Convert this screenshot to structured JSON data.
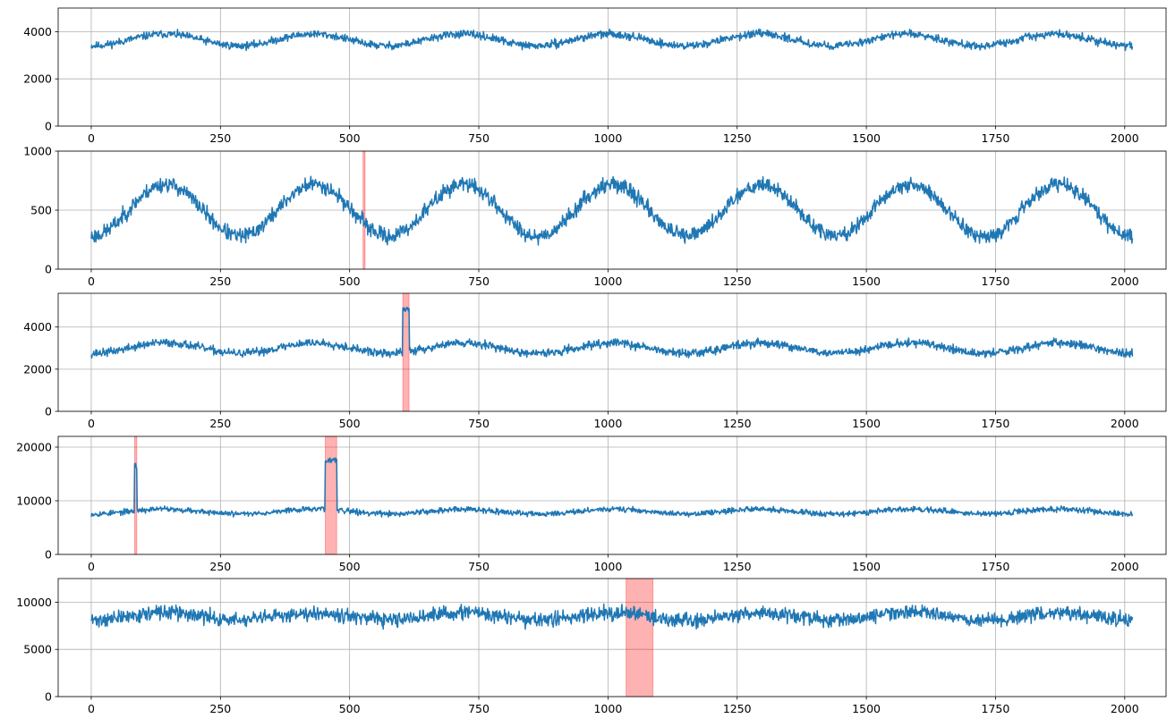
{
  "chart_data": [
    {
      "type": "line",
      "title": "",
      "xlim": [
        -64,
        2080
      ],
      "ylim": [
        0,
        5000
      ],
      "xticks": [
        "0",
        "250",
        "500",
        "750",
        "1000",
        "1250",
        "1500",
        "1750",
        "2000"
      ],
      "xtick_values": [
        0,
        250,
        500,
        750,
        1000,
        1250,
        1500,
        1750,
        2000
      ],
      "yticks": [
        "0",
        "2000",
        "4000"
      ],
      "ytick_values": [
        0,
        2000,
        4000
      ],
      "grid": true,
      "line_color": "#1f77b4",
      "anomaly_color": "#ff0000",
      "anomaly_spans": [],
      "series": {
        "n": 2016,
        "base": 3650,
        "amplitude": 250,
        "period": 287,
        "phase": -71,
        "noise": 150,
        "seed": 11,
        "bursts": []
      }
    },
    {
      "type": "line",
      "title": "",
      "xlim": [
        -64,
        2080
      ],
      "ylim": [
        0,
        1000
      ],
      "xticks": [
        "0",
        "250",
        "500",
        "750",
        "1000",
        "1250",
        "1500",
        "1750",
        "2000"
      ],
      "xtick_values": [
        0,
        250,
        500,
        750,
        1000,
        1250,
        1500,
        1750,
        2000
      ],
      "yticks": [
        "0",
        "500",
        "1000"
      ],
      "ytick_values": [
        0,
        500,
        1000
      ],
      "grid": true,
      "line_color": "#1f77b4",
      "anomaly_color": "#ff0000",
      "anomaly_spans": [
        [
          526,
          530
        ]
      ],
      "series": {
        "n": 2016,
        "base": 500,
        "amplitude": 220,
        "period": 288,
        "phase": -72,
        "noise": 60,
        "seed": 23,
        "bursts": []
      }
    },
    {
      "type": "line",
      "title": "",
      "xlim": [
        -64,
        2080
      ],
      "ylim": [
        0,
        5600
      ],
      "xticks": [
        "0",
        "250",
        "500",
        "750",
        "1000",
        "1250",
        "1500",
        "1750",
        "2000"
      ],
      "xtick_values": [
        0,
        250,
        500,
        750,
        1000,
        1250,
        1500,
        1750,
        2000
      ],
      "yticks": [
        "0",
        "2000",
        "4000"
      ],
      "ytick_values": [
        0,
        2000,
        4000
      ],
      "grid": true,
      "line_color": "#1f77b4",
      "anomaly_color": "#ff0000",
      "anomaly_spans": [
        [
          603,
          615
        ]
      ],
      "series": {
        "n": 2016,
        "base": 3000,
        "amplitude": 250,
        "period": 288,
        "phase": -72,
        "noise": 180,
        "seed": 37,
        "bursts": [
          [
            603,
            615,
            4800
          ]
        ]
      }
    },
    {
      "type": "line",
      "title": "",
      "xlim": [
        -64,
        2080
      ],
      "ylim": [
        0,
        22000
      ],
      "xticks": [
        "0",
        "250",
        "500",
        "750",
        "1000",
        "1250",
        "1500",
        "1750",
        "2000"
      ],
      "xtick_values": [
        0,
        250,
        500,
        750,
        1000,
        1250,
        1500,
        1750,
        2000
      ],
      "yticks": [
        "0",
        "10000",
        "20000"
      ],
      "ytick_values": [
        0,
        10000,
        20000
      ],
      "grid": true,
      "line_color": "#1f77b4",
      "anomaly_color": "#ff0000",
      "anomaly_spans": [
        [
          84,
          88
        ],
        [
          453,
          475
        ]
      ],
      "series": {
        "n": 2016,
        "base": 8000,
        "amplitude": 450,
        "period": 288,
        "phase": -72,
        "noise": 480,
        "seed": 53,
        "bursts": [
          [
            84,
            88,
            16500
          ],
          [
            453,
            475,
            17500
          ]
        ]
      }
    },
    {
      "type": "line",
      "title": "",
      "xlim": [
        -64,
        2080
      ],
      "ylim": [
        0,
        12500
      ],
      "xticks": [
        "0",
        "250",
        "500",
        "750",
        "1000",
        "1250",
        "1500",
        "1750",
        "2000"
      ],
      "xtick_values": [
        0,
        250,
        500,
        750,
        1000,
        1250,
        1500,
        1750,
        2000
      ],
      "yticks": [
        "0",
        "5000",
        "10000"
      ],
      "ytick_values": [
        0,
        5000,
        10000
      ],
      "grid": true,
      "line_color": "#1f77b4",
      "anomaly_color": "#ff0000",
      "anomaly_spans": [
        [
          1035,
          1087
        ]
      ],
      "series": {
        "n": 2016,
        "base": 8500,
        "amplitude": 400,
        "period": 288,
        "phase": -72,
        "noise": 700,
        "seed": 71,
        "bursts": []
      }
    }
  ]
}
